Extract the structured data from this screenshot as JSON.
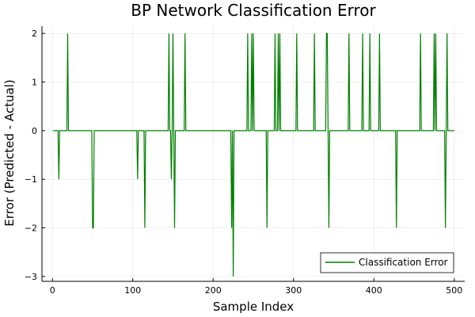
{
  "chart_data": {
    "type": "line",
    "title": "BP Network Classification Error",
    "xlabel": "Sample Index",
    "ylabel": "Error (Predicted - Actual)",
    "xlim": [
      -13,
      513
    ],
    "ylim": [
      -3.1,
      2.15
    ],
    "xticks": [
      0,
      100,
      200,
      300,
      400,
      500
    ],
    "yticks": [
      -3,
      -2,
      -1,
      0,
      1,
      2
    ],
    "grid": true,
    "legend_position": "bottom-right",
    "series": [
      {
        "name": "Classification Error",
        "color": "#008000",
        "n_samples": 500,
        "baseline": 0,
        "nonzero": [
          {
            "x": 8,
            "y": -1
          },
          {
            "x": 19,
            "y": 2
          },
          {
            "x": 50,
            "y": -2
          },
          {
            "x": 51,
            "y": -2
          },
          {
            "x": 106,
            "y": -1
          },
          {
            "x": 115,
            "y": -2
          },
          {
            "x": 145,
            "y": 2
          },
          {
            "x": 148,
            "y": -1
          },
          {
            "x": 150,
            "y": 2
          },
          {
            "x": 152,
            "y": -2
          },
          {
            "x": 165,
            "y": 2
          },
          {
            "x": 223,
            "y": -2
          },
          {
            "x": 225,
            "y": -3
          },
          {
            "x": 243,
            "y": 2
          },
          {
            "x": 248,
            "y": 2
          },
          {
            "x": 250,
            "y": 2
          },
          {
            "x": 267,
            "y": -2
          },
          {
            "x": 277,
            "y": 2
          },
          {
            "x": 281,
            "y": 2
          },
          {
            "x": 283,
            "y": 2
          },
          {
            "x": 304,
            "y": 2
          },
          {
            "x": 326,
            "y": 2
          },
          {
            "x": 341,
            "y": 2
          },
          {
            "x": 342,
            "y": 2
          },
          {
            "x": 344,
            "y": -2
          },
          {
            "x": 369,
            "y": 2
          },
          {
            "x": 386,
            "y": 2
          },
          {
            "x": 395,
            "y": 2
          },
          {
            "x": 407,
            "y": 2
          },
          {
            "x": 428,
            "y": -2
          },
          {
            "x": 458,
            "y": 2
          },
          {
            "x": 475,
            "y": 2
          },
          {
            "x": 477,
            "y": 2
          },
          {
            "x": 489,
            "y": -2
          },
          {
            "x": 491,
            "y": 2
          }
        ]
      }
    ]
  }
}
